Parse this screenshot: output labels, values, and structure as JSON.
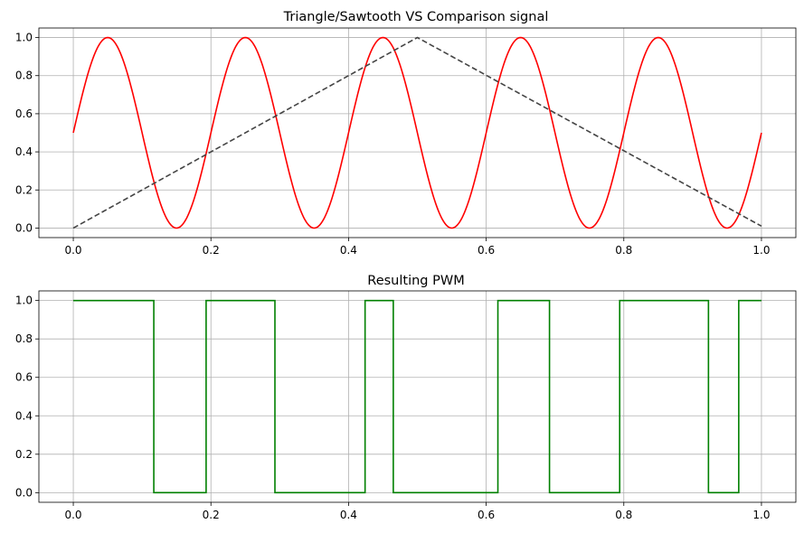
{
  "chart_data": [
    {
      "type": "line",
      "title": "Triangle/Sawtooth VS Comparison signal",
      "xlim": [
        -0.05,
        1.05
      ],
      "ylim": [
        -0.05,
        1.05
      ],
      "xticks": [
        "0.0",
        "0.2",
        "0.4",
        "0.6",
        "0.8",
        "1.0"
      ],
      "yticks": [
        "0.0",
        "0.2",
        "0.4",
        "0.6",
        "0.8",
        "1.0"
      ],
      "grid": true,
      "series": [
        {
          "style": "solid",
          "color": "#ff0000",
          "function": "0.5 + 0.5*sin(2*pi*5*x)",
          "x": [
            0.0,
            0.05,
            0.1,
            0.15,
            0.2,
            0.25,
            0.3,
            0.35,
            0.4,
            0.45,
            0.5,
            0.55,
            0.6,
            0.65,
            0.7,
            0.75,
            0.8,
            0.85,
            0.9,
            0.95,
            1.0
          ],
          "y": [
            0.5,
            1.0,
            0.5,
            0.0,
            0.5,
            1.0,
            0.5,
            0.0,
            0.5,
            1.0,
            0.5,
            0.0,
            0.5,
            1.0,
            0.5,
            0.0,
            0.5,
            1.0,
            0.5,
            0.0,
            0.5
          ]
        },
        {
          "style": "dashed",
          "color": "#444444",
          "x": [
            0.0,
            0.5,
            1.0
          ],
          "y": [
            0.0,
            1.0,
            0.01
          ]
        }
      ]
    },
    {
      "type": "line",
      "title": "Resulting PWM",
      "xlim": [
        -0.05,
        1.05
      ],
      "ylim": [
        -0.05,
        1.05
      ],
      "xticks": [
        "0.0",
        "0.2",
        "0.4",
        "0.6",
        "0.8",
        "1.0"
      ],
      "yticks": [
        "0.0",
        "0.2",
        "0.4",
        "0.6",
        "0.8",
        "1.0"
      ],
      "grid": true,
      "series": [
        {
          "style": "step",
          "color": "#008000",
          "x": [
            0.0,
            0.117,
            0.117,
            0.193,
            0.193,
            0.293,
            0.293,
            0.424,
            0.424,
            0.465,
            0.465,
            0.617,
            0.617,
            0.692,
            0.692,
            0.794,
            0.794,
            0.923,
            0.923,
            0.967,
            0.967,
            1.0
          ],
          "y": [
            1,
            1,
            0,
            0,
            1,
            1,
            0,
            0,
            1,
            1,
            0,
            0,
            1,
            1,
            0,
            0,
            1,
            1,
            0,
            0,
            1,
            1
          ]
        }
      ]
    }
  ]
}
